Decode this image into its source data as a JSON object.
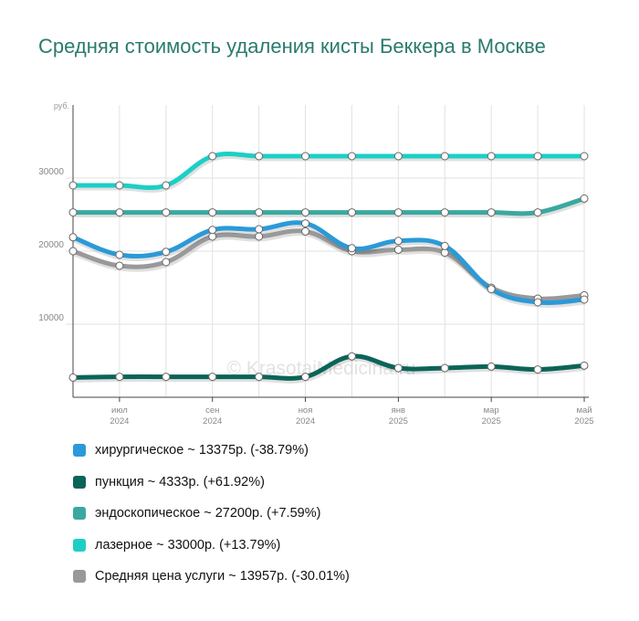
{
  "title": "Средняя стоимость удаления кисты Беккера в Москве",
  "watermark": "© KrasotaiMedicina.ru",
  "legend": [
    "хирургическое ~ 13375р. (-38.79%)",
    "пункция ~ 4333р. (+61.92%)",
    "эндоскопическое ~ 27200р. (+7.59%)",
    "лазерное ~ 33000р. (+13.79%)",
    "Средняя цена услуги ~ 13957р. (-30.01%)"
  ],
  "chart_data": {
    "type": "line",
    "y_unit": "руб.",
    "ylim": [
      0,
      40000
    ],
    "yticks": [
      10000,
      20000,
      30000
    ],
    "ytick_labels": [
      "10000",
      "20000",
      "30000"
    ],
    "x_count": 12,
    "xticks": [
      {
        "i": 1,
        "month": "июл",
        "year": "2024"
      },
      {
        "i": 3,
        "month": "сен",
        "year": "2024"
      },
      {
        "i": 5,
        "month": "ноя",
        "year": "2024"
      },
      {
        "i": 7,
        "month": "янв",
        "year": "2025"
      },
      {
        "i": 9,
        "month": "мар",
        "year": "2025"
      },
      {
        "i": 11,
        "month": "май",
        "year": "2025"
      }
    ],
    "grid": true,
    "series": [
      {
        "name": "Средняя цена услуги",
        "color": "#999999",
        "values": [
          20000,
          18000,
          18500,
          22000,
          22000,
          22700,
          20000,
          20200,
          19800,
          15000,
          13500,
          13957
        ]
      },
      {
        "name": "хирургическое",
        "color": "#2a9ad8",
        "values": [
          21900,
          19500,
          19900,
          22900,
          23000,
          23800,
          20400,
          21400,
          20700,
          14800,
          13000,
          13375
        ]
      },
      {
        "name": "пункция",
        "color": "#0b6458",
        "values": [
          2700,
          2800,
          2800,
          2800,
          2800,
          2800,
          5600,
          4000,
          4000,
          4200,
          3800,
          4333
        ]
      },
      {
        "name": "эндоскопическое",
        "color": "#3aa8a0",
        "values": [
          25300,
          25300,
          25300,
          25300,
          25300,
          25300,
          25300,
          25300,
          25300,
          25300,
          25300,
          27200
        ]
      },
      {
        "name": "лазерное",
        "color": "#1ccfc6",
        "values": [
          29000,
          29000,
          29000,
          33000,
          33000,
          33000,
          33000,
          33000,
          33000,
          33000,
          33000,
          33000
        ]
      }
    ]
  },
  "legend_colors": [
    "#2a9ad8",
    "#0b6458",
    "#3aa8a0",
    "#1ccfc6",
    "#999999"
  ]
}
